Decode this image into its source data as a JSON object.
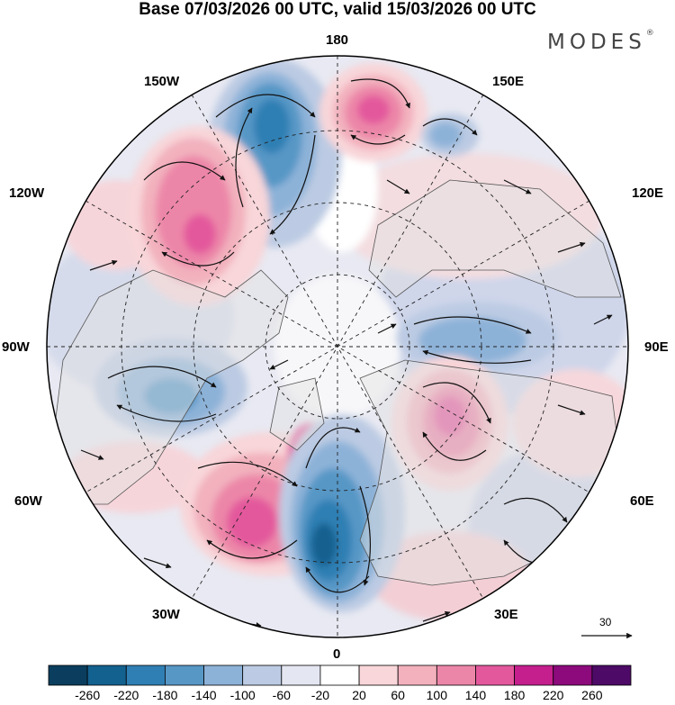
{
  "title": "Base 07/03/2026 00 UTC, valid 15/03/2026 00 UTC",
  "brand": "MODES",
  "brand_mark": "®",
  "longitude_labels": {
    "top": "180",
    "top_left": "150W",
    "top_right": "150E",
    "upper_left": "120W",
    "upper_right": "120E",
    "left": "90W",
    "right": "90E",
    "lower_left": "60W",
    "lower_right": "60E",
    "bottom_left": "30W",
    "bottom_right": "30E",
    "bottom": "0"
  },
  "reference_vector": {
    "value": "30"
  },
  "colorbar": {
    "labels": [
      "-260",
      "-220",
      "-180",
      "-140",
      "-100",
      "-60",
      "-20",
      "20",
      "60",
      "100",
      "140",
      "180",
      "220",
      "260"
    ],
    "colors": [
      "#0b3e5e",
      "#13618f",
      "#2f7fb4",
      "#5797c6",
      "#8db2d8",
      "#bccbe3",
      "#e4e6f1",
      "#ffffff",
      "#f8d6d9",
      "#f2b1bd",
      "#ec86a8",
      "#e3589c",
      "#c41f8d",
      "#8c0a7c",
      "#4d0a66"
    ]
  },
  "colors": {
    "land_fill": "#e3e3e3",
    "coast": "#555555",
    "grid": "#222222"
  }
}
